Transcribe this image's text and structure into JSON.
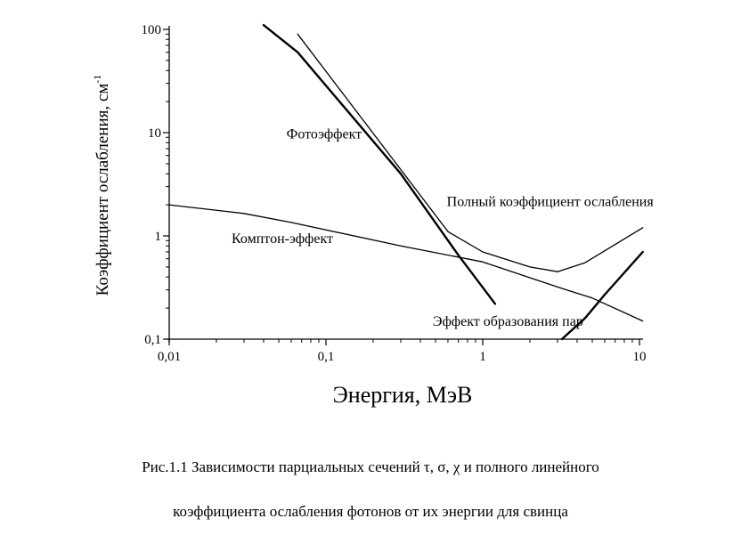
{
  "chart_data": {
    "type": "line",
    "xlabel": "Энергия, МэВ",
    "ylabel": "Коэффициент ослабления, см",
    "ylabel_superscript": "-1",
    "xscale": "log",
    "yscale": "log",
    "xlim": [
      0.01,
      10
    ],
    "ylim": [
      0.1,
      100
    ],
    "xticks": [
      {
        "value": 0.01,
        "label": "0,01"
      },
      {
        "value": 0.1,
        "label": "0,1"
      },
      {
        "value": 1,
        "label": "1"
      },
      {
        "value": 10,
        "label": "10"
      }
    ],
    "yticks": [
      {
        "value": 0.1,
        "label": "0,1"
      },
      {
        "value": 1,
        "label": "1"
      },
      {
        "value": 10,
        "label": "10"
      },
      {
        "value": 100,
        "label": "100"
      }
    ],
    "grid": false,
    "series": [
      {
        "name": "Фотоэффект",
        "line_weight": "bold",
        "points": [
          [
            0.04,
            110
          ],
          [
            0.066,
            60
          ],
          [
            0.3,
            4
          ],
          [
            0.7,
            0.65
          ],
          [
            1.2,
            0.22
          ]
        ]
      },
      {
        "name": "Полный коэффициент ослабления",
        "line_weight": "thin",
        "points": [
          [
            0.066,
            90
          ],
          [
            0.6,
            1.1
          ],
          [
            1.0,
            0.7
          ],
          [
            2.0,
            0.5
          ],
          [
            3.0,
            0.45
          ],
          [
            4.5,
            0.55
          ],
          [
            10.5,
            1.2
          ]
        ]
      },
      {
        "name": "Комптон-эффект",
        "line_weight": "thin",
        "points": [
          [
            0.01,
            2.0
          ],
          [
            0.03,
            1.65
          ],
          [
            0.06,
            1.35
          ],
          [
            0.3,
            0.8
          ],
          [
            1.0,
            0.56
          ],
          [
            3.0,
            0.32
          ],
          [
            5.0,
            0.25
          ],
          [
            10.5,
            0.15
          ]
        ]
      },
      {
        "name": "Эффект образования пар",
        "line_weight": "bold",
        "points": [
          [
            3.2,
            0.1
          ],
          [
            4.5,
            0.16
          ],
          [
            6.0,
            0.27
          ],
          [
            10.5,
            0.7
          ]
        ]
      }
    ],
    "annotations": [
      {
        "series": "Фотоэффект",
        "text": "Фотоэффект",
        "x": 0.056,
        "y": 8.8
      },
      {
        "series": "Полный коэффициент ослабления",
        "text": "Полный коэффициент ослабления",
        "x": 0.59,
        "y": 1.95
      },
      {
        "series": "Комптон-эффект",
        "text": "Комптон-эффект",
        "x": 0.025,
        "y": 0.85
      },
      {
        "series": "Эффект образования пар",
        "text": "Эффект образования пар",
        "x": 0.48,
        "y": 0.135
      }
    ]
  },
  "caption": {
    "line1": "Рис.1.1  Зависимости парциальных сечений τ, σ, χ и  полного линейного",
    "line2": "коэффициента ослабления фотонов от их энергии для свинца"
  }
}
